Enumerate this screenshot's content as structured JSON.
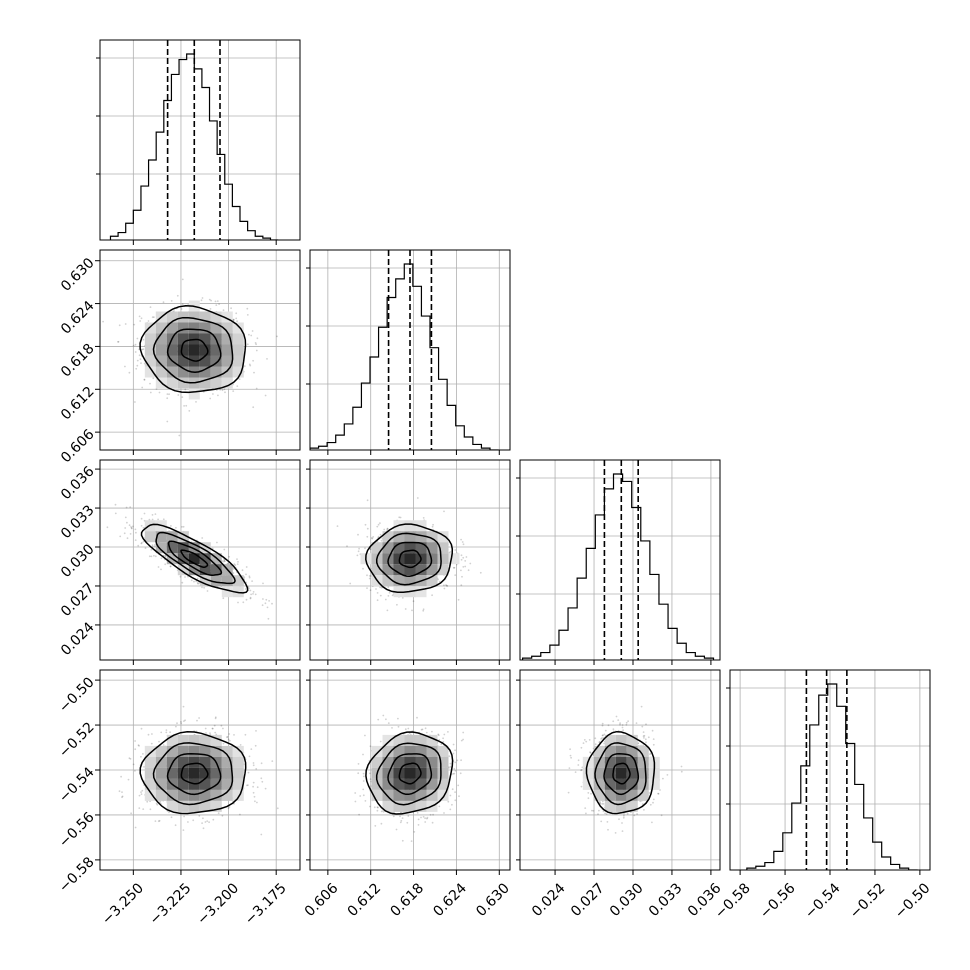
{
  "chart_data": {
    "type": "corner",
    "grid": true,
    "parameters": [
      {
        "id": "p1",
        "range": [
          -3.2675,
          -3.1625
        ],
        "ticks": [
          -3.25,
          -3.225,
          -3.2,
          -3.175
        ],
        "tick_labels": [
          "−3.250",
          "−3.225",
          "−3.200",
          "−3.175"
        ],
        "quantiles": [
          -3.232,
          -3.218,
          -3.2045
        ],
        "histogram": {
          "bin_edges": [
            -3.262,
            -3.258,
            -3.254,
            -3.25,
            -3.246,
            -3.242,
            -3.238,
            -3.234,
            -3.23,
            -3.226,
            -3.222,
            -3.218,
            -3.214,
            -3.21,
            -3.206,
            -3.202,
            -3.198,
            -3.194,
            -3.19,
            -3.186,
            -3.182,
            -3.178,
            -3.174
          ],
          "counts": [
            2,
            4,
            9,
            16,
            29,
            43,
            58,
            75,
            89,
            97,
            100,
            92,
            82,
            64,
            46,
            30,
            18,
            10,
            5,
            2,
            1,
            0
          ]
        }
      },
      {
        "id": "p2",
        "range": [
          0.6035,
          0.6315
        ],
        "ticks": [
          0.606,
          0.612,
          0.618,
          0.624,
          0.63
        ],
        "tick_labels": [
          "0.606",
          "0.612",
          "0.618",
          "0.624",
          "0.630"
        ],
        "quantiles": [
          0.6145,
          0.6175,
          0.6205
        ],
        "histogram": {
          "bin_edges": [
            0.6035,
            0.6047,
            0.6059,
            0.6071,
            0.6083,
            0.6095,
            0.6107,
            0.6119,
            0.6131,
            0.6143,
            0.6155,
            0.6167,
            0.6179,
            0.6191,
            0.6203,
            0.6215,
            0.6227,
            0.6239,
            0.6251,
            0.6263,
            0.6275,
            0.6287,
            0.6299
          ],
          "counts": [
            1,
            2,
            4,
            8,
            14,
            23,
            36,
            50,
            66,
            82,
            92,
            100,
            88,
            72,
            55,
            38,
            24,
            13,
            7,
            3,
            1,
            0
          ]
        }
      },
      {
        "id": "p3",
        "range": [
          0.0213,
          0.0367
        ],
        "ticks": [
          0.024,
          0.027,
          0.03,
          0.033,
          0.036
        ],
        "tick_labels": [
          "0.024",
          "0.027",
          "0.030",
          "0.033",
          "0.036"
        ],
        "quantiles": [
          0.0278,
          0.0291,
          0.0304
        ],
        "histogram": {
          "bin_edges": [
            0.0215,
            0.0222,
            0.0229,
            0.0236,
            0.0243,
            0.025,
            0.0257,
            0.0264,
            0.0271,
            0.0278,
            0.0285,
            0.0292,
            0.0299,
            0.0306,
            0.0313,
            0.032,
            0.0327,
            0.0334,
            0.0341,
            0.0348,
            0.0355,
            0.0362
          ],
          "counts": [
            1,
            2,
            4,
            8,
            16,
            28,
            44,
            60,
            78,
            92,
            100,
            96,
            82,
            64,
            46,
            30,
            17,
            9,
            4,
            2,
            1
          ]
        }
      },
      {
        "id": "p4",
        "range": [
          -0.5845,
          -0.4955
        ],
        "ticks": [
          -0.58,
          -0.56,
          -0.54,
          -0.52,
          -0.5
        ],
        "tick_labels": [
          "−0.58",
          "−0.56",
          "−0.54",
          "−0.52",
          "−0.50"
        ],
        "quantiles": [
          -0.5505,
          -0.5415,
          -0.5325
        ],
        "histogram": {
          "bin_edges": [
            -0.577,
            -0.573,
            -0.569,
            -0.565,
            -0.561,
            -0.557,
            -0.553,
            -0.549,
            -0.545,
            -0.541,
            -0.537,
            -0.533,
            -0.529,
            -0.525,
            -0.521,
            -0.517,
            -0.513,
            -0.509,
            -0.505,
            -0.501
          ],
          "counts": [
            1,
            2,
            4,
            10,
            20,
            36,
            56,
            78,
            94,
            100,
            88,
            68,
            46,
            28,
            15,
            7,
            3,
            1,
            0
          ]
        }
      }
    ],
    "correlations": {
      "p2_p1": -0.05,
      "p3_p1": -0.82,
      "p3_p2": 0.05,
      "p4_p1": 0.0,
      "p4_p2": 0.12,
      "p4_p3": 0.0
    }
  }
}
